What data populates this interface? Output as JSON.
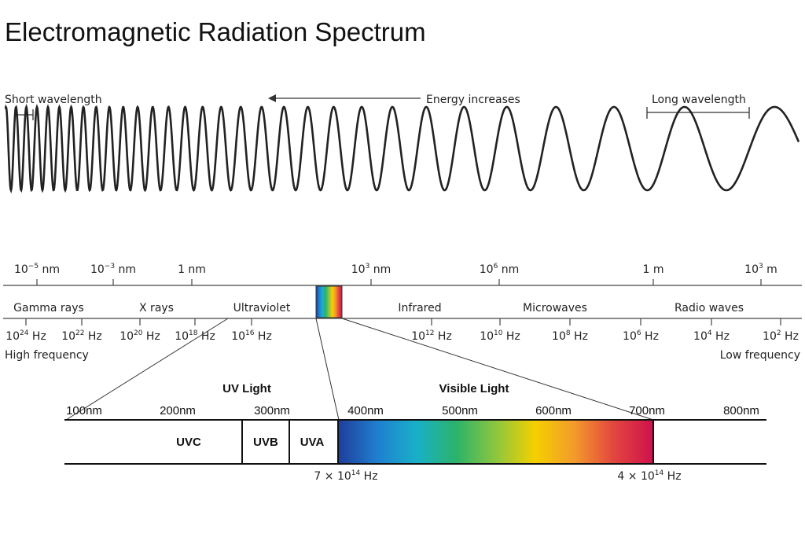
{
  "title": "Electromagnetic Radiation Spectrum",
  "wave": {
    "short_label": "Short wavelength",
    "energy_label": "Energy increases",
    "long_label": "Long wavelength"
  },
  "wavelength_ticks": [
    {
      "base": "10",
      "exp": "−5",
      "unit": " nm"
    },
    {
      "base": "10",
      "exp": "−3",
      "unit": " nm"
    },
    {
      "base": "1 nm",
      "exp": "",
      "unit": ""
    },
    {
      "base": "10",
      "exp": "3",
      "unit": " nm"
    },
    {
      "base": "10",
      "exp": "6",
      "unit": " nm"
    },
    {
      "base": "1 m",
      "exp": "",
      "unit": ""
    },
    {
      "base": "10",
      "exp": "3",
      "unit": " m"
    }
  ],
  "bands": [
    "Gamma rays",
    "X rays",
    "Ultraviolet",
    "Infrared",
    "Microwaves",
    "Radio waves"
  ],
  "frequency_ticks": [
    {
      "base": "10",
      "exp": "24",
      "unit": " Hz"
    },
    {
      "base": "10",
      "exp": "22",
      "unit": " Hz"
    },
    {
      "base": "10",
      "exp": "20",
      "unit": " Hz"
    },
    {
      "base": "10",
      "exp": "18",
      "unit": " Hz"
    },
    {
      "base": "10",
      "exp": "16",
      "unit": " Hz"
    },
    {
      "base": "10",
      "exp": "12",
      "unit": " Hz"
    },
    {
      "base": "10",
      "exp": "10",
      "unit": " Hz"
    },
    {
      "base": "10",
      "exp": "8",
      "unit": " Hz"
    },
    {
      "base": "10",
      "exp": "6",
      "unit": " Hz"
    },
    {
      "base": "10",
      "exp": "4",
      "unit": " Hz"
    },
    {
      "base": "10",
      "exp": "2",
      "unit": " Hz"
    }
  ],
  "high_frequency": "High frequency",
  "low_frequency": "Low frequency",
  "detail": {
    "uv_title": "UV Light",
    "visible_title": "Visible Light",
    "nm_labels": [
      "100nm",
      "200nm",
      "300nm",
      "400nm",
      "500nm",
      "600nm",
      "700nm",
      "800nm"
    ],
    "uv_segments": [
      "UVC",
      "UVB",
      "UVA"
    ],
    "freq_400": {
      "base": "7 × 10",
      "exp": "14",
      "unit": " Hz"
    },
    "freq_700": {
      "base": "4 × 10",
      "exp": "14",
      "unit": " Hz"
    }
  },
  "colors": {
    "visible_gradient": [
      "#1f3d9b",
      "#1f7fd0",
      "#19b0c8",
      "#2bb36a",
      "#8cc63f",
      "#f5d000",
      "#f39a2b",
      "#e2463f",
      "#d0104c"
    ]
  }
}
